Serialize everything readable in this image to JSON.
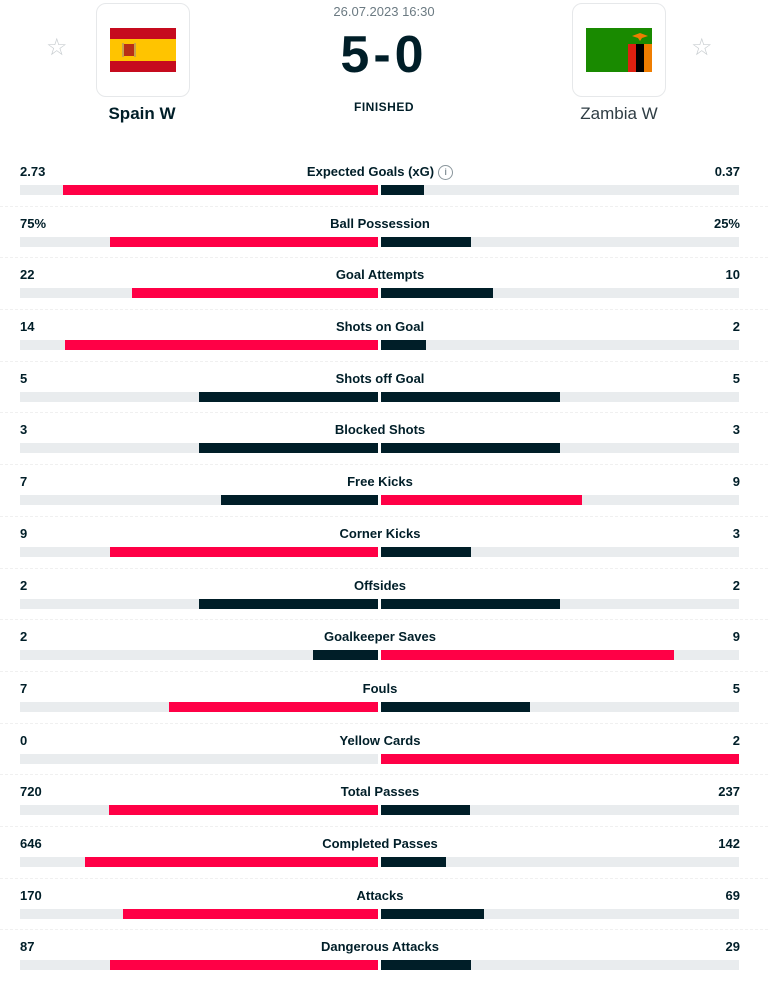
{
  "match": {
    "datetime": "26.07.2023 16:30",
    "score": "5-0",
    "status": "FINISHED",
    "home_team": "Spain W",
    "away_team": "Zambia W"
  },
  "colors": {
    "accent": "#ff0046",
    "dark": "#001e28",
    "track": "#e9ecee"
  },
  "icons": {
    "favorite": "star-outline-icon",
    "info": "info-icon"
  },
  "stats": [
    {
      "label": "Expected Goals (xG)",
      "home": "2.73",
      "away": "0.37",
      "home_share": 0.88,
      "away_share": 0.12,
      "info": true
    },
    {
      "label": "Ball Possession",
      "home": "75%",
      "away": "25%",
      "home_share": 0.75,
      "away_share": 0.25
    },
    {
      "label": "Goal Attempts",
      "home": "22",
      "away": "10",
      "home_share": 0.6875,
      "away_share": 0.3125
    },
    {
      "label": "Shots on Goal",
      "home": "14",
      "away": "2",
      "home_share": 0.875,
      "away_share": 0.125
    },
    {
      "label": "Shots off Goal",
      "home": "5",
      "away": "5",
      "home_share": 0.5,
      "away_share": 0.5
    },
    {
      "label": "Blocked Shots",
      "home": "3",
      "away": "3",
      "home_share": 0.5,
      "away_share": 0.5
    },
    {
      "label": "Free Kicks",
      "home": "7",
      "away": "9",
      "home_share": 0.4375,
      "away_share": 0.5625
    },
    {
      "label": "Corner Kicks",
      "home": "9",
      "away": "3",
      "home_share": 0.75,
      "away_share": 0.25
    },
    {
      "label": "Offsides",
      "home": "2",
      "away": "2",
      "home_share": 0.5,
      "away_share": 0.5
    },
    {
      "label": "Goalkeeper Saves",
      "home": "2",
      "away": "9",
      "home_share": 0.1818,
      "away_share": 0.8182
    },
    {
      "label": "Fouls",
      "home": "7",
      "away": "5",
      "home_share": 0.5833,
      "away_share": 0.4167
    },
    {
      "label": "Yellow Cards",
      "home": "0",
      "away": "2",
      "home_share": 0.0,
      "away_share": 1.0
    },
    {
      "label": "Total Passes",
      "home": "720",
      "away": "237",
      "home_share": 0.7524,
      "away_share": 0.2476
    },
    {
      "label": "Completed Passes",
      "home": "646",
      "away": "142",
      "home_share": 0.8198,
      "away_share": 0.1802
    },
    {
      "label": "Attacks",
      "home": "170",
      "away": "69",
      "home_share": 0.7113,
      "away_share": 0.2887
    },
    {
      "label": "Dangerous Attacks",
      "home": "87",
      "away": "29",
      "home_share": 0.75,
      "away_share": 0.25
    }
  ]
}
